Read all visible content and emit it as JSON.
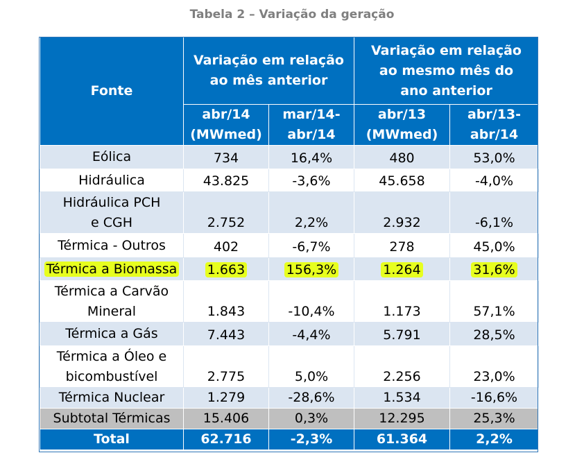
{
  "caption": "Tabela 2 – Variação da geração",
  "header": {
    "fonte": "Fonte",
    "group1": "Variação em relação ao mês anterior",
    "group2": "Variação em relação ao mesmo mês do ano anterior",
    "col1": "abr/14 (MWmed)",
    "col2": "mar/14-abr/14",
    "col3": "abr/13 (MWmed)",
    "col4": "abr/13-abr/14"
  },
  "rows": [
    {
      "fonte": "Eólica",
      "abr14": "734",
      "var_mes": "16,4%",
      "abr13": "480",
      "var_ano": "53,0%"
    },
    {
      "fonte": "Hidráulica",
      "abr14": "43.825",
      "var_mes": "-3,6%",
      "abr13": "45.658",
      "var_ano": "-4,0%"
    },
    {
      "fonte": "Hidráulica PCH e CGH",
      "abr14": "2.752",
      "var_mes": "2,2%",
      "abr13": "2.932",
      "var_ano": "-6,1%"
    },
    {
      "fonte": "Térmica - Outros",
      "abr14": "402",
      "var_mes": "-6,7%",
      "abr13": "278",
      "var_ano": "45,0%"
    },
    {
      "fonte": "Térmica a Biomassa",
      "abr14": "1.663",
      "var_mes": "156,3%",
      "abr13": "1.264",
      "var_ano": "31,6%"
    },
    {
      "fonte": "Térmica a Carvão Mineral",
      "abr14": "1.843",
      "var_mes": "-10,4%",
      "abr13": "1.173",
      "var_ano": "57,1%"
    },
    {
      "fonte": "Térmica a Gás",
      "abr14": "7.443",
      "var_mes": "-4,4%",
      "abr13": "5.791",
      "var_ano": "28,5%"
    },
    {
      "fonte": "Térmica a Óleo e bicombustível",
      "abr14": "2.775",
      "var_mes": "5,0%",
      "abr13": "2.256",
      "var_ano": "23,0%"
    },
    {
      "fonte": "Térmica Nuclear",
      "abr14": "1.279",
      "var_mes": "-28,6%",
      "abr13": "1.534",
      "var_ano": "-16,6%"
    }
  ],
  "subtotal": {
    "fonte": "Subtotal Térmicas",
    "abr14": "15.406",
    "var_mes": "0,3%",
    "abr13": "12.295",
    "var_ano": "25,3%"
  },
  "total": {
    "fonte": "Total",
    "abr14": "62.716",
    "var_mes": "-2,3%",
    "abr13": "61.364",
    "var_ano": "2,2%"
  },
  "colors": {
    "header_blue": "#0070c0",
    "band_light_blue": "#dbe5f1",
    "subtotal_gray": "#bfbfbf",
    "highlight_yellow": "#e7ff1f",
    "caption_gray": "#7f7f7f"
  }
}
